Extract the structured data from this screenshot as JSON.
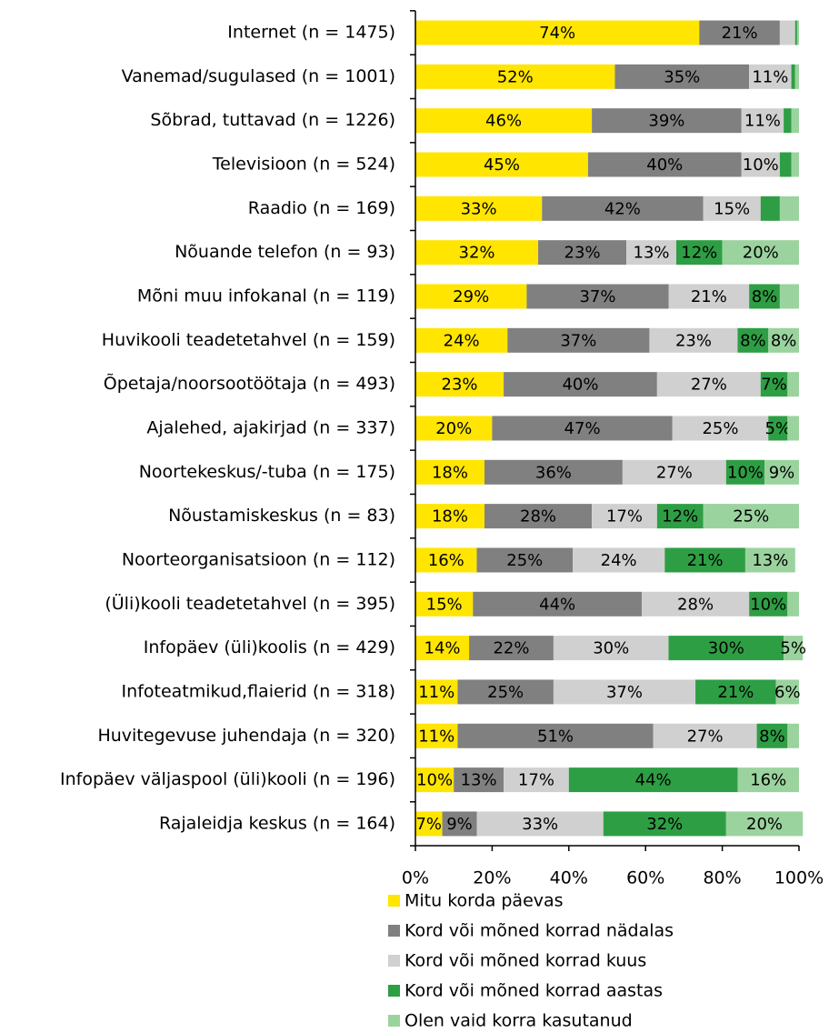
{
  "chart_data": {
    "type": "stacked_bar_horizontal",
    "categories": [
      "Internet (n = 1475)",
      "Vanemad/sugulased (n = 1001)",
      "Sõbrad, tuttavad (n = 1226)",
      "Televisioon (n = 524)",
      "Raadio (n = 169)",
      "Nõuande telefon (n = 93)",
      "Mõni muu infokanal (n = 119)",
      "Huvikooli teadetetahvel (n = 159)",
      "Õpetaja/noorsootöötaja (n = 493)",
      "Ajalehed, ajakirjad (n = 337)",
      "Noortekeskus/-tuba (n = 175)",
      "Nõustamiskeskus (n = 83)",
      "Noorteorganisatsioon (n = 112)",
      "(Üli)kooli teadetetahvel (n = 395)",
      "Infopäev (üli)koolis (n = 429)",
      "Infoteatmikud,flaierid (n = 318)",
      "Huvitegevuse juhendaja (n = 320)",
      "Infopäev väljaspool (üli)kooli (n = 196)",
      "Rajaleidja keskus (n = 164)"
    ],
    "series": [
      {
        "name": "Mitu korda päevas",
        "color": "#ffe500",
        "values": [
          74,
          52,
          46,
          45,
          33,
          32,
          29,
          24,
          23,
          20,
          18,
          18,
          16,
          15,
          14,
          11,
          11,
          10,
          7
        ],
        "value_labels": [
          "74%",
          "52%",
          "46%",
          "45%",
          "33%",
          "32%",
          "29%",
          "24%",
          "23%",
          "20%",
          "18%",
          "18%",
          "16%",
          "15%",
          "14%",
          "11%",
          "11%",
          "10%",
          "7%"
        ]
      },
      {
        "name": "Kord või mõned korrad nädalas",
        "color": "#808080",
        "values": [
          21,
          35,
          39,
          40,
          42,
          23,
          37,
          37,
          40,
          47,
          36,
          28,
          25,
          44,
          22,
          25,
          51,
          13,
          9
        ],
        "value_labels": [
          "21%",
          "35%",
          "39%",
          "40%",
          "42%",
          "23%",
          "37%",
          "37%",
          "40%",
          "47%",
          "36%",
          "28%",
          "25%",
          "44%",
          "22%",
          "25%",
          "51%",
          "13%",
          "9%"
        ]
      },
      {
        "name": "Kord või mõned korrad kuus",
        "color": "#d0d0d0",
        "values": [
          4,
          11,
          11,
          10,
          15,
          13,
          21,
          23,
          27,
          25,
          27,
          17,
          24,
          28,
          30,
          37,
          27,
          17,
          33
        ],
        "value_labels": [
          null,
          "11%",
          "11%",
          "10%",
          "15%",
          "13%",
          "21%",
          "23%",
          "27%",
          "25%",
          "27%",
          "17%",
          "24%",
          "28%",
          "30%",
          "37%",
          "27%",
          "17%",
          "33%"
        ]
      },
      {
        "name": "Kord või mõned korrad aastas",
        "color": "#2e9e44",
        "values": [
          0.5,
          1,
          2,
          3,
          5,
          12,
          8,
          8,
          7,
          5,
          10,
          12,
          21,
          10,
          30,
          21,
          8,
          44,
          32
        ],
        "value_labels": [
          null,
          null,
          null,
          null,
          null,
          "12%",
          "8%",
          "8%",
          "7%",
          "5%",
          "10%",
          "12%",
          "21%",
          "10%",
          "30%",
          "21%",
          "8%",
          "44%",
          "32%"
        ]
      },
      {
        "name": "Olen vaid korra kasutanud",
        "color": "#9bd39e",
        "values": [
          0.5,
          1,
          2,
          2,
          5,
          20,
          5,
          8,
          3,
          3,
          9,
          25,
          13,
          3,
          5,
          6,
          3,
          16,
          20
        ],
        "value_labels": [
          null,
          null,
          null,
          null,
          null,
          "20%",
          null,
          "8%",
          null,
          null,
          "9%",
          "25%",
          "13%",
          null,
          "5%",
          "6%",
          null,
          "16%",
          "20%"
        ]
      }
    ],
    "xlim": [
      0,
      100
    ],
    "xticks": [
      {
        "value": 0,
        "label": "0%"
      },
      {
        "value": 20,
        "label": "20%"
      },
      {
        "value": 40,
        "label": "40%"
      },
      {
        "value": 60,
        "label": "60%"
      },
      {
        "value": 80,
        "label": "80%"
      },
      {
        "value": 100,
        "label": "100%"
      }
    ]
  }
}
